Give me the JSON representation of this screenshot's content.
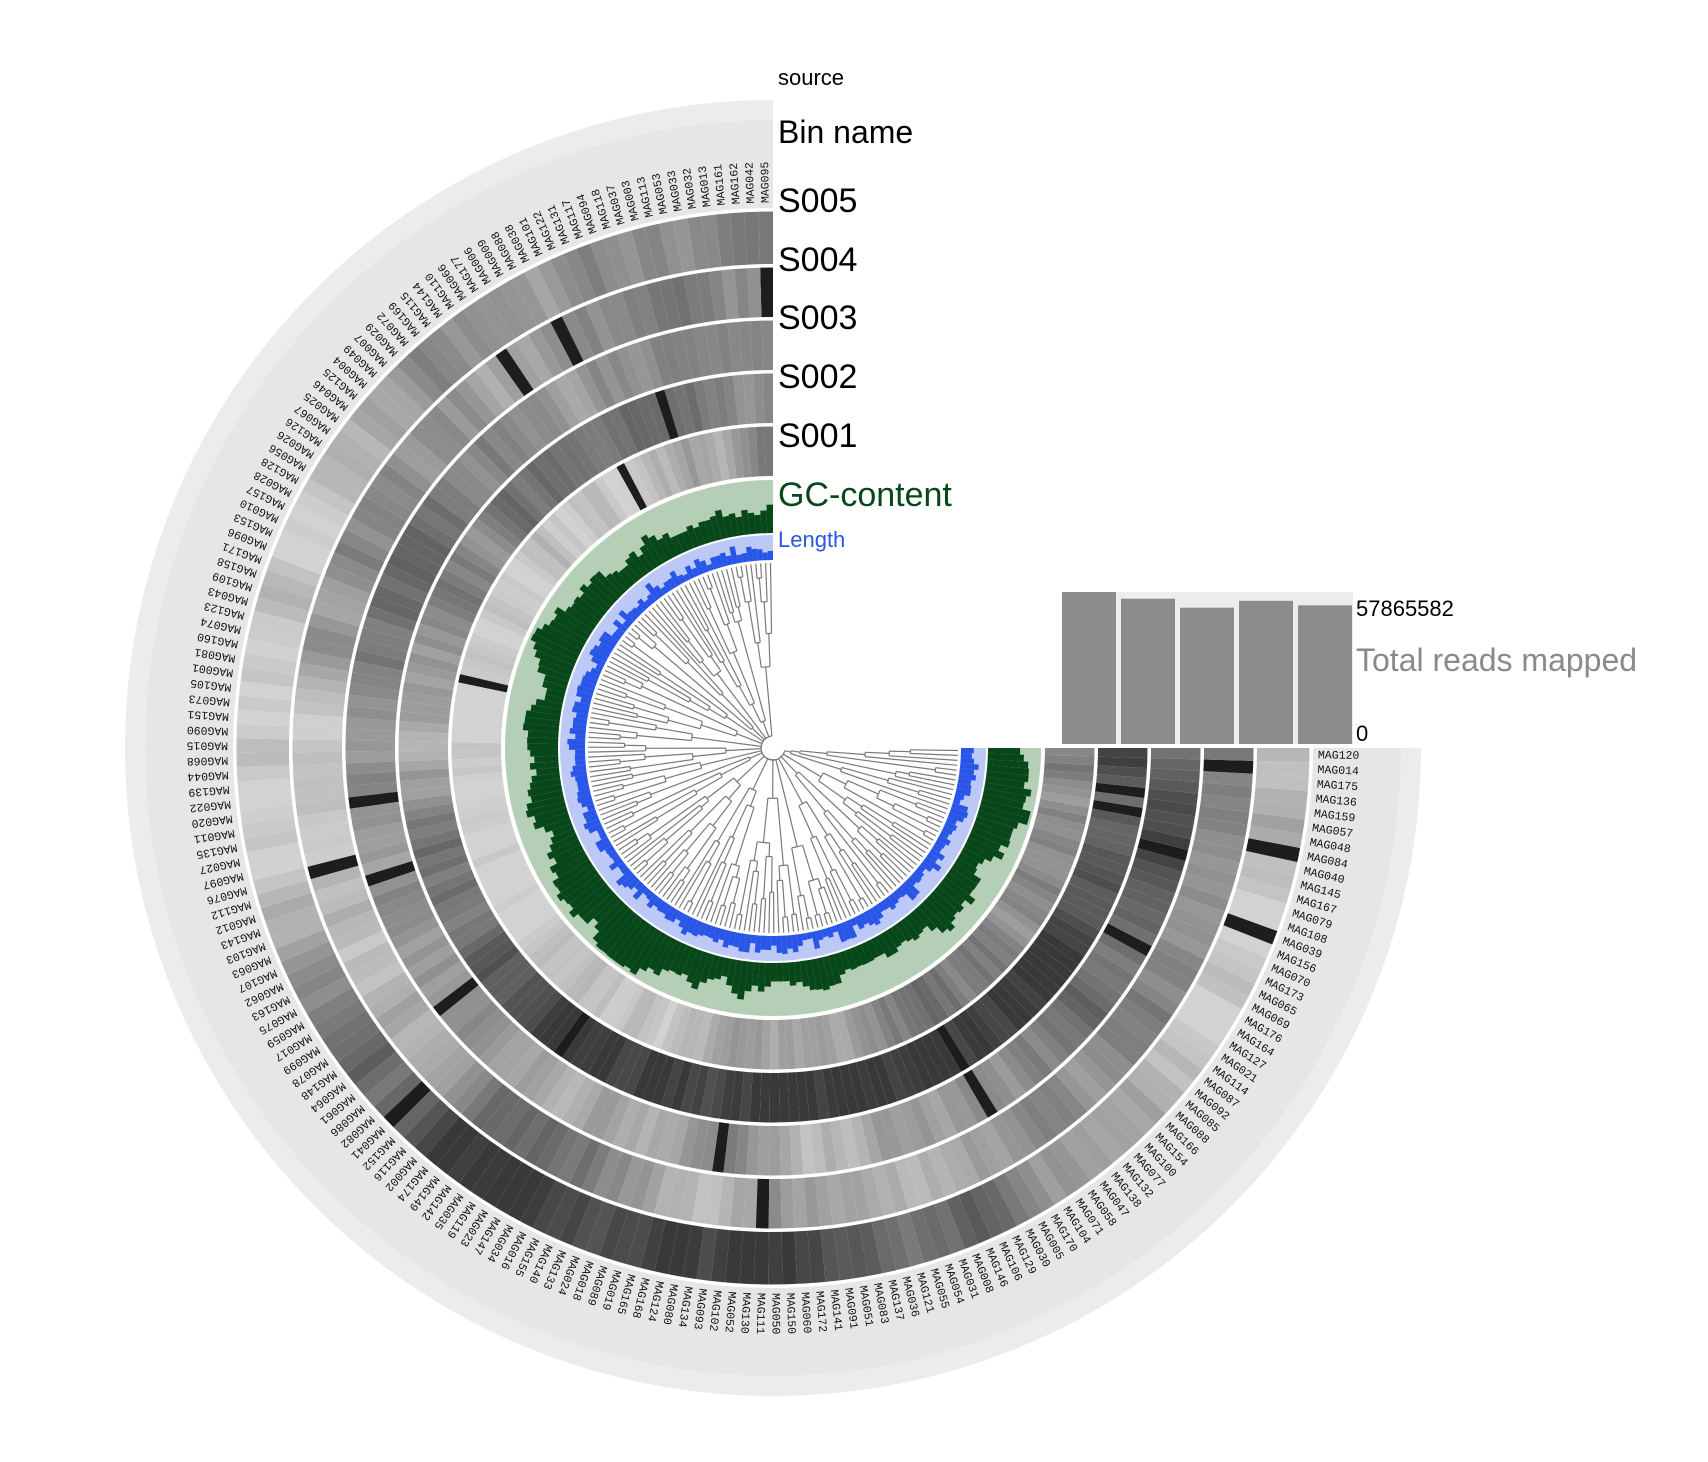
{
  "layers": {
    "source_label": "source",
    "bin_name_label": "Bin name",
    "samples": [
      "S005",
      "S004",
      "S003",
      "S002",
      "S001"
    ],
    "gc_label": "GC-content",
    "length_label": "Length"
  },
  "total_reads": {
    "title": "Total reads mapped",
    "max_label": "57865582",
    "min_label": "0"
  },
  "colors": {
    "gc_dark": "#07471a",
    "gc_light": "#b4cfb6",
    "length_dark": "#2a56e8",
    "length_light": "#bcc9f7",
    "source_ring": "#ececec",
    "bar": "#8c8c8c",
    "tree": "#7a7a7a"
  },
  "chart_data": {
    "type": "heatmap",
    "layout": "circular, 270 degrees",
    "bins": [
      "MAG095",
      "MAG042",
      "MAG162",
      "MAG161",
      "MAG013",
      "MAG032",
      "MAG033",
      "MAG053",
      "MAG113",
      "MAG003",
      "MAG037",
      "MAG118",
      "MAG094",
      "MAG117",
      "MAG131",
      "MAG122",
      "MAG101",
      "MAG038",
      "MAG088",
      "MAG009",
      "MAG006",
      "MAG177",
      "MAG066",
      "MAG110",
      "MAG144",
      "MAG115",
      "MAG169",
      "MAG072",
      "MAG029",
      "MAG007",
      "MAG049",
      "MAG004",
      "MAG125",
      "MAG046",
      "MAG025",
      "MAG067",
      "MAG126",
      "MAG026",
      "MAG056",
      "MAG128",
      "MAG028",
      "MAG157",
      "MAG010",
      "MAG153",
      "MAG096",
      "MAG171",
      "MAG158",
      "MAG109",
      "MAG043",
      "MAG123",
      "MAG074",
      "MAG160",
      "MAG081",
      "MAG001",
      "MAG105",
      "MAG073",
      "MAG151",
      "MAG090",
      "MAG015",
      "MAG068",
      "MAG044",
      "MAG139",
      "MAG022",
      "MAG020",
      "MAG011",
      "MAG135",
      "MAG027",
      "MAG097",
      "MAG076",
      "MAG112",
      "MAG012",
      "MAG143",
      "MAG103",
      "MAG063",
      "MAG107",
      "MAG062",
      "MAG163",
      "MAG075",
      "MAG059",
      "MAG017",
      "MAG099",
      "MAG078",
      "MAG148",
      "MAG064",
      "MAG061",
      "MAG086",
      "MAG082",
      "MAG041",
      "MAG152",
      "MAG116",
      "MAG002",
      "MAG174",
      "MAG149",
      "MAG142",
      "MAG035",
      "MAG119",
      "MAG023",
      "MAG147",
      "MAG034",
      "MAG016",
      "MAG155",
      "MAG140",
      "MAG133",
      "MAG024",
      "MAG018",
      "MAG089",
      "MAG019",
      "MAG165",
      "MAG168",
      "MAG124",
      "MAG080",
      "MAG134",
      "MAG093",
      "MAG102",
      "MAG052",
      "MAG130",
      "MAG111",
      "MAG050",
      "MAG150",
      "MAG060",
      "MAG172",
      "MAG141",
      "MAG091",
      "MAG051",
      "MAG083",
      "MAG137",
      "MAG036",
      "MAG121",
      "MAG055",
      "MAG054",
      "MAG031",
      "MAG008",
      "MAG146",
      "MAG106",
      "MAG129",
      "MAG030",
      "MAG005",
      "MAG170",
      "MAG104",
      "MAG071",
      "MAG058",
      "MAG047",
      "MAG138",
      "MAG132",
      "MAG077",
      "MAG100",
      "MAG154",
      "MAG166",
      "MAG088",
      "MAG085",
      "MAG092",
      "MAG087",
      "MAG114",
      "MAG021",
      "MAG127",
      "MAG164",
      "MAG176",
      "MAG069",
      "MAG065",
      "MAG173",
      "MAG070",
      "MAG156",
      "MAG039",
      "MAG108",
      "MAG079",
      "MAG167",
      "MAG145",
      "MAG040",
      "MAG084",
      "MAG048",
      "MAG057",
      "MAG159",
      "MAG136",
      "MAG175",
      "MAG014",
      "MAG120"
    ],
    "samples": [
      "S005",
      "S004",
      "S003",
      "S002",
      "S001"
    ],
    "total_reads_mapped": [
      57865582,
      55300000,
      51900000,
      54500000,
      52800000
    ],
    "total_reads_ylim": [
      0,
      57865582
    ]
  }
}
